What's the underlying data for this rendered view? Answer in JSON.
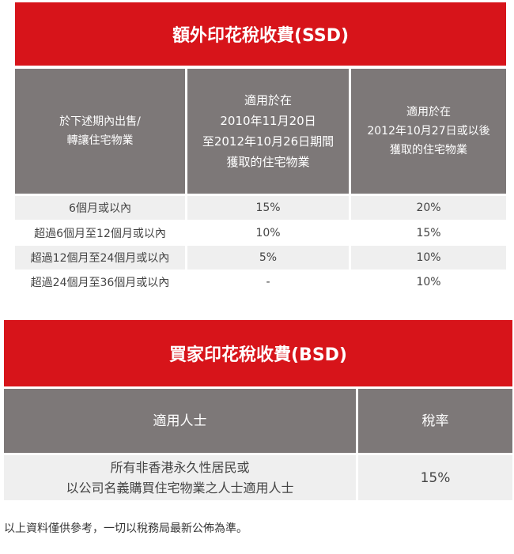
{
  "ssd": {
    "title": "額外印花稅收費(SSD)",
    "headers": [
      [
        "於下述期內出售/",
        "轉讓住宅物業"
      ],
      [
        "適用於在",
        "2010年11月20日",
        "至2012年10月26日期間",
        "獲取的住宅物業"
      ],
      [
        "適用於在",
        "2012年10月27日或以後",
        "獲取的住宅物業"
      ]
    ],
    "rows": [
      {
        "period": "6個月或以內",
        "rate_a": "15%",
        "rate_b": "20%"
      },
      {
        "period": "超過6個月至12個月或以內",
        "rate_a": "10%",
        "rate_b": "15%"
      },
      {
        "period": "超過12個月至24個月或以內",
        "rate_a": "5%",
        "rate_b": "10%"
      },
      {
        "period": "超過24個月至36個月或以內",
        "rate_a": "-",
        "rate_b": "10%"
      }
    ]
  },
  "bsd": {
    "title": "買家印花稅收費(BSD)",
    "headers": [
      "適用人士",
      "稅率"
    ],
    "row": {
      "applicant_lines": [
        "所有非香港永久性居民或",
        "以公司名義購買住宅物業之人士適用人士"
      ],
      "rate": "15%"
    }
  },
  "footer_note": "以上資料僅供參考，一切以稅務局最新公佈為準。",
  "colors": {
    "header_red": "#d7141a",
    "header_gray": "#7d7878",
    "row_alt": "#efefef"
  }
}
